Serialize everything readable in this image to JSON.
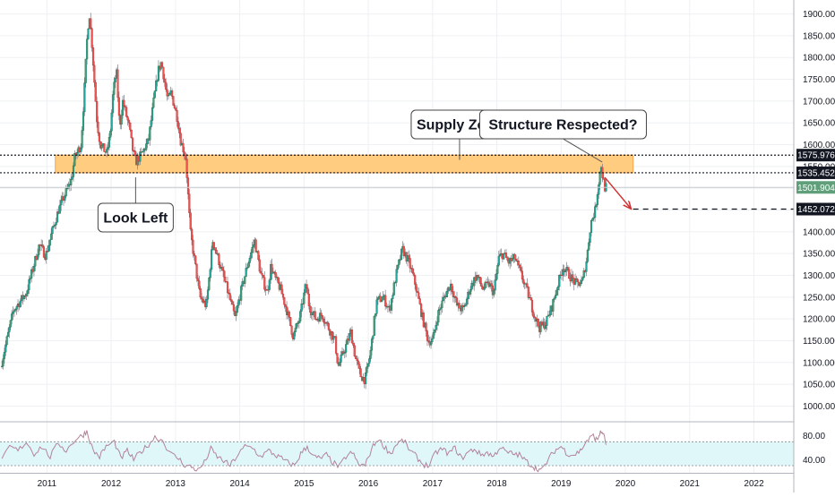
{
  "chart_data": [
    {
      "type": "candlestick",
      "title": "",
      "xlabel": "",
      "ylabel": "",
      "x_ticks": [
        "2011",
        "2012",
        "2013",
        "2014",
        "2015",
        "2016",
        "2017",
        "2018",
        "2019",
        "2020",
        "2021",
        "2022"
      ],
      "y_ticks": [
        "1000.000",
        "1050.000",
        "1100.000",
        "1150.000",
        "1200.000",
        "1250.000",
        "1300.000",
        "1350.000",
        "1400.000",
        "1450.000",
        "1500.000",
        "1550.000",
        "1600.000",
        "1650.000",
        "1700.000",
        "1750.000",
        "1800.000",
        "1850.000",
        "1900.000"
      ],
      "ylim": [
        966,
        1932
      ],
      "xlim": [
        2010.27,
        2022.62
      ],
      "grid": true,
      "colors": {
        "up": "#26a69a",
        "down": "#ef5350",
        "up_body": "#1b5e20",
        "down_body": "#b71c1c",
        "wick": "#787b86"
      },
      "price_path": [
        [
          2010.3,
          1090
        ],
        [
          2010.5,
          1220
        ],
        [
          2010.7,
          1260
        ],
        [
          2010.9,
          1370
        ],
        [
          2011.0,
          1345
        ],
        [
          2011.1,
          1400
        ],
        [
          2011.2,
          1450
        ],
        [
          2011.4,
          1520
        ],
        [
          2011.45,
          1570
        ],
        [
          2011.55,
          1600
        ],
        [
          2011.6,
          1720
        ],
        [
          2011.65,
          1860
        ],
        [
          2011.68,
          1900
        ],
        [
          2011.72,
          1830
        ],
        [
          2011.8,
          1650
        ],
        [
          2011.85,
          1600
        ],
        [
          2011.95,
          1580
        ],
        [
          2012.0,
          1620
        ],
        [
          2012.05,
          1720
        ],
        [
          2012.1,
          1770
        ],
        [
          2012.15,
          1640
        ],
        [
          2012.2,
          1700
        ],
        [
          2012.3,
          1640
        ],
        [
          2012.35,
          1590
        ],
        [
          2012.4,
          1560
        ],
        [
          2012.5,
          1580
        ],
        [
          2012.6,
          1610
        ],
        [
          2012.68,
          1700
        ],
        [
          2012.75,
          1770
        ],
        [
          2012.8,
          1790
        ],
        [
          2012.9,
          1700
        ],
        [
          2012.95,
          1720
        ],
        [
          2013.05,
          1660
        ],
        [
          2013.1,
          1610
        ],
        [
          2013.18,
          1570
        ],
        [
          2013.25,
          1400
        ],
        [
          2013.32,
          1330
        ],
        [
          2013.4,
          1250
        ],
        [
          2013.5,
          1230
        ],
        [
          2013.6,
          1380
        ],
        [
          2013.7,
          1330
        ],
        [
          2013.8,
          1280
        ],
        [
          2013.95,
          1200
        ],
        [
          2014.0,
          1240
        ],
        [
          2014.15,
          1330
        ],
        [
          2014.25,
          1380
        ],
        [
          2014.35,
          1300
        ],
        [
          2014.45,
          1260
        ],
        [
          2014.5,
          1320
        ],
        [
          2014.58,
          1290
        ],
        [
          2014.65,
          1270
        ],
        [
          2014.75,
          1220
        ],
        [
          2014.85,
          1160
        ],
        [
          2014.95,
          1200
        ],
        [
          2015.05,
          1280
        ],
        [
          2015.1,
          1230
        ],
        [
          2015.2,
          1200
        ],
        [
          2015.3,
          1210
        ],
        [
          2015.4,
          1180
        ],
        [
          2015.5,
          1150
        ],
        [
          2015.55,
          1090
        ],
        [
          2015.65,
          1130
        ],
        [
          2015.75,
          1170
        ],
        [
          2015.82,
          1110
        ],
        [
          2015.9,
          1070
        ],
        [
          2015.97,
          1060
        ],
        [
          2016.05,
          1120
        ],
        [
          2016.15,
          1240
        ],
        [
          2016.25,
          1250
        ],
        [
          2016.35,
          1220
        ],
        [
          2016.45,
          1300
        ],
        [
          2016.55,
          1360
        ],
        [
          2016.65,
          1330
        ],
        [
          2016.75,
          1280
        ],
        [
          2016.85,
          1210
        ],
        [
          2016.95,
          1150
        ],
        [
          2017.02,
          1150
        ],
        [
          2017.1,
          1210
        ],
        [
          2017.2,
          1250
        ],
        [
          2017.3,
          1280
        ],
        [
          2017.4,
          1230
        ],
        [
          2017.5,
          1220
        ],
        [
          2017.6,
          1270
        ],
        [
          2017.7,
          1300
        ],
        [
          2017.8,
          1270
        ],
        [
          2017.9,
          1280
        ],
        [
          2017.97,
          1260
        ],
        [
          2018.05,
          1340
        ],
        [
          2018.12,
          1350
        ],
        [
          2018.2,
          1330
        ],
        [
          2018.3,
          1340
        ],
        [
          2018.4,
          1300
        ],
        [
          2018.5,
          1260
        ],
        [
          2018.6,
          1210
        ],
        [
          2018.68,
          1180
        ],
        [
          2018.78,
          1190
        ],
        [
          2018.88,
          1230
        ],
        [
          2018.97,
          1280
        ],
        [
          2019.05,
          1320
        ],
        [
          2019.15,
          1300
        ],
        [
          2019.25,
          1280
        ],
        [
          2019.35,
          1285
        ],
        [
          2019.42,
          1340
        ],
        [
          2019.48,
          1420
        ],
        [
          2019.55,
          1450
        ],
        [
          2019.6,
          1510
        ],
        [
          2019.64,
          1555
        ],
        [
          2019.67,
          1520
        ],
        [
          2019.7,
          1502
        ]
      ]
    },
    {
      "type": "line",
      "title": "",
      "x_ticks": [],
      "y_ticks": [
        "40.00",
        "80.00"
      ],
      "ylim": [
        18,
        102
      ],
      "band": [
        30,
        70
      ],
      "colors": {
        "line": "#b2839a",
        "band": "#e0f7fa",
        "guide": "#888888"
      },
      "series": [
        {
          "name": "",
          "points": [
            [
              2010.3,
              38
            ],
            [
              2010.42,
              62
            ],
            [
              2010.55,
              55
            ],
            [
              2010.68,
              70
            ],
            [
              2010.8,
              50
            ],
            [
              2010.92,
              62
            ],
            [
              2011.05,
              45
            ],
            [
              2011.18,
              68
            ],
            [
              2011.3,
              55
            ],
            [
              2011.45,
              75
            ],
            [
              2011.55,
              80
            ],
            [
              2011.62,
              88
            ],
            [
              2011.72,
              55
            ],
            [
              2011.82,
              45
            ],
            [
              2011.92,
              62
            ],
            [
              2012.05,
              70
            ],
            [
              2012.15,
              42
            ],
            [
              2012.25,
              55
            ],
            [
              2012.35,
              40
            ],
            [
              2012.45,
              52
            ],
            [
              2012.55,
              62
            ],
            [
              2012.68,
              78
            ],
            [
              2012.8,
              72
            ],
            [
              2012.92,
              50
            ],
            [
              2013.05,
              42
            ],
            [
              2013.15,
              30
            ],
            [
              2013.25,
              28
            ],
            [
              2013.35,
              22
            ],
            [
              2013.45,
              35
            ],
            [
              2013.55,
              58
            ],
            [
              2013.65,
              45
            ],
            [
              2013.75,
              38
            ],
            [
              2013.85,
              30
            ],
            [
              2013.95,
              45
            ],
            [
              2014.08,
              62
            ],
            [
              2014.2,
              60
            ],
            [
              2014.32,
              45
            ],
            [
              2014.45,
              55
            ],
            [
              2014.55,
              48
            ],
            [
              2014.65,
              42
            ],
            [
              2014.75,
              35
            ],
            [
              2014.85,
              30
            ],
            [
              2014.95,
              50
            ],
            [
              2015.05,
              62
            ],
            [
              2015.15,
              45
            ],
            [
              2015.25,
              42
            ],
            [
              2015.35,
              48
            ],
            [
              2015.45,
              35
            ],
            [
              2015.55,
              28
            ],
            [
              2015.65,
              45
            ],
            [
              2015.75,
              52
            ],
            [
              2015.85,
              32
            ],
            [
              2015.95,
              30
            ],
            [
              2016.05,
              58
            ],
            [
              2016.15,
              75
            ],
            [
              2016.25,
              62
            ],
            [
              2016.35,
              50
            ],
            [
              2016.45,
              68
            ],
            [
              2016.55,
              72
            ],
            [
              2016.65,
              55
            ],
            [
              2016.75,
              45
            ],
            [
              2016.85,
              32
            ],
            [
              2016.95,
              30
            ],
            [
              2017.05,
              52
            ],
            [
              2017.15,
              58
            ],
            [
              2017.25,
              50
            ],
            [
              2017.35,
              60
            ],
            [
              2017.45,
              42
            ],
            [
              2017.55,
              52
            ],
            [
              2017.65,
              58
            ],
            [
              2017.75,
              48
            ],
            [
              2017.85,
              52
            ],
            [
              2017.95,
              45
            ],
            [
              2018.05,
              62
            ],
            [
              2018.15,
              52
            ],
            [
              2018.25,
              50
            ],
            [
              2018.35,
              48
            ],
            [
              2018.45,
              38
            ],
            [
              2018.55,
              30
            ],
            [
              2018.62,
              25
            ],
            [
              2018.7,
              22
            ],
            [
              2018.8,
              40
            ],
            [
              2018.9,
              55
            ],
            [
              2019.0,
              62
            ],
            [
              2019.1,
              50
            ],
            [
              2019.2,
              48
            ],
            [
              2019.3,
              55
            ],
            [
              2019.4,
              72
            ],
            [
              2019.5,
              80
            ],
            [
              2019.56,
              72
            ],
            [
              2019.6,
              84
            ],
            [
              2019.65,
              86
            ],
            [
              2019.7,
              65
            ]
          ]
        }
      ]
    }
  ],
  "annotations": {
    "supply_zone": {
      "label": "Supply Zone",
      "top": 1575.976,
      "bottom": 1535.452,
      "color": "#ffcc80",
      "border": "#f7a74a"
    },
    "look_left": {
      "label": "Look Left"
    },
    "structure": {
      "label": "Structure Respected?"
    },
    "target": {
      "value": 1452.072
    }
  },
  "price_labels": [
    {
      "text": "1575.976",
      "value": 1575.976,
      "bg": "#131722"
    },
    {
      "text": "1535.452",
      "value": 1535.452,
      "bg": "#131722"
    },
    {
      "text": "1501.904",
      "value": 1501.904,
      "bg": "#5f9f7a"
    },
    {
      "text": "1452.072",
      "value": 1452.072,
      "bg": "#131722"
    }
  ]
}
